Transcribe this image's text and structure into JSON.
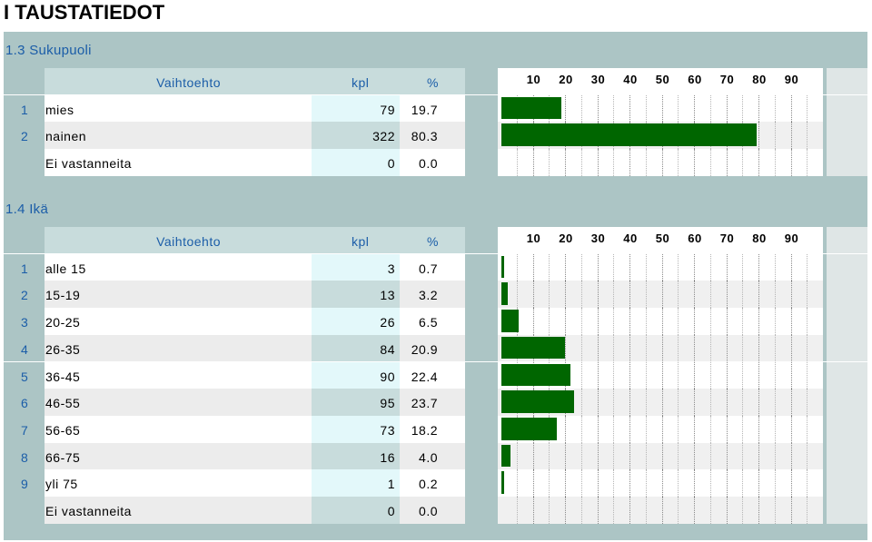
{
  "page_title": "I TAUSTATIEDOT",
  "columns": {
    "option": "Vaihtoehto",
    "count": "kpl",
    "percent": "%"
  },
  "scale_ticks": [
    "10",
    "20",
    "30",
    "40",
    "50",
    "60",
    "70",
    "80",
    "90"
  ],
  "colors": {
    "bar": "#006600",
    "frame": "#acc5c5",
    "header_text": "#1b5da8",
    "blue_line": "#3585d9"
  },
  "sections": [
    {
      "title": "1.3 Sukupuoli",
      "rows": [
        {
          "idx": "1",
          "label": "mies",
          "count": "79",
          "pct": "19.7",
          "value": 19.7
        },
        {
          "idx": "2",
          "label": "nainen",
          "count": "322",
          "pct": "80.3",
          "value": 80.3
        },
        {
          "idx": "",
          "label": "Ei vastanneita",
          "count": "0",
          "pct": "0.0",
          "value": 0
        }
      ]
    },
    {
      "title": "1.4 Ikä",
      "rows": [
        {
          "idx": "1",
          "label": "alle 15",
          "count": "3",
          "pct": "0.7",
          "value": 0.7
        },
        {
          "idx": "2",
          "label": "15-19",
          "count": "13",
          "pct": "3.2",
          "value": 3.2
        },
        {
          "idx": "3",
          "label": "20-25",
          "count": "26",
          "pct": "6.5",
          "value": 6.5
        },
        {
          "idx": "4",
          "label": "26-35",
          "count": "84",
          "pct": "20.9",
          "value": 20.9
        },
        {
          "idx": "5",
          "label": "36-45",
          "count": "90",
          "pct": "22.4",
          "value": 22.4
        },
        {
          "idx": "6",
          "label": "46-55",
          "count": "95",
          "pct": "23.7",
          "value": 23.7
        },
        {
          "idx": "7",
          "label": "56-65",
          "count": "73",
          "pct": "18.2",
          "value": 18.2
        },
        {
          "idx": "8",
          "label": "66-75",
          "count": "16",
          "pct": "4.0",
          "value": 4.0
        },
        {
          "idx": "9",
          "label": "yli 75",
          "count": "1",
          "pct": "0.2",
          "value": 0.2
        },
        {
          "idx": "",
          "label": "Ei vastanneita",
          "count": "0",
          "pct": "0.0",
          "value": 0
        }
      ]
    }
  ]
}
